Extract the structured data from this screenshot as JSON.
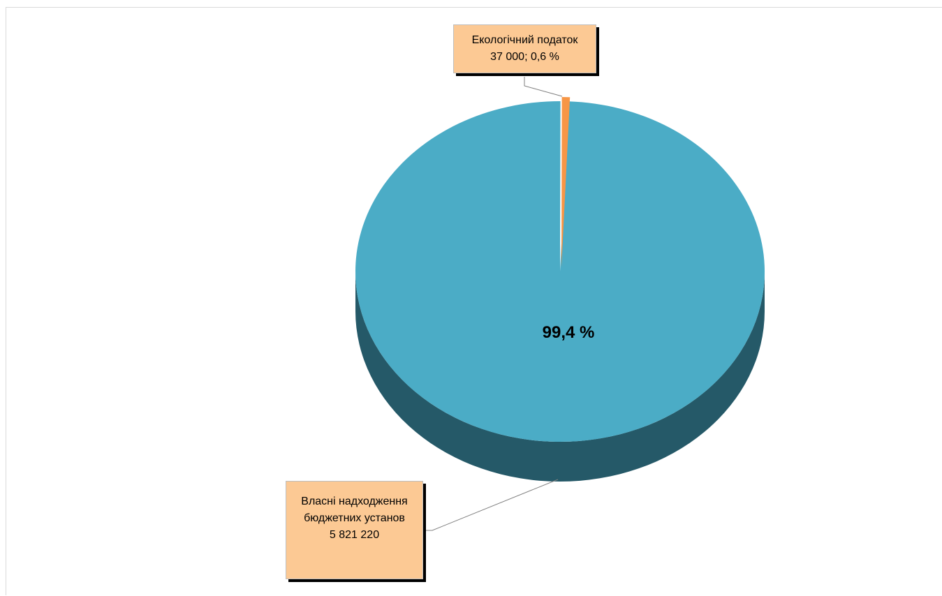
{
  "chart_data": {
    "type": "pie",
    "style": "3d",
    "slices": [
      {
        "name_line1": "Власні надходження",
        "name_line2": "бюджетних установ",
        "value": 5821220,
        "value_label": "5 821 220",
        "percent": 99.4,
        "percent_label": "99,4 %",
        "color": "#4bacc6",
        "side_color": "#255968"
      },
      {
        "name": "Екологічний податок",
        "value": 37000,
        "value_label": "37 000; 0,6 %",
        "percent": 0.6,
        "color": "#f79646",
        "side_color": "#b65708"
      }
    ],
    "label_box_color": "#fcc994"
  }
}
